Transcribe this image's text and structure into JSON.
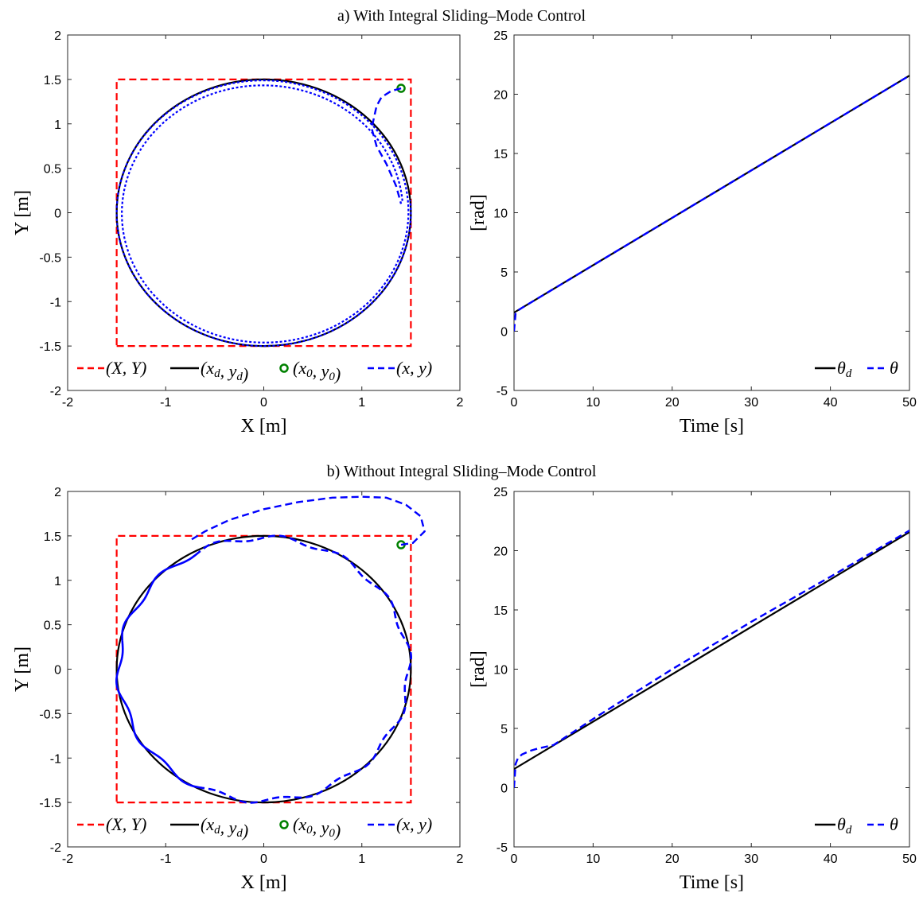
{
  "figure": {
    "titles": [
      "a) With Integral Sliding–Mode Control",
      "b) Without Integral Sliding–Mode Control"
    ]
  },
  "chart_data": [
    {
      "type": "line",
      "panel": "a-trajectory",
      "xlabel": "X [m]",
      "ylabel": "Y [m]",
      "xlim": [
        -2,
        2
      ],
      "ylim": [
        -2,
        2
      ],
      "xticks": [
        "-2",
        "-1",
        "0",
        "1",
        "2"
      ],
      "yticks": [
        "-2",
        "-1.5",
        "-1",
        "-0.5",
        "0",
        "0.5",
        "1",
        "1.5",
        "2"
      ],
      "grid": false,
      "legend": "bottom-center",
      "series": [
        {
          "name": "(X,Y)",
          "legend": "(X, Y)",
          "color": "#ff0000",
          "style": "dashed",
          "x": [
            -1.5,
            1.5,
            1.5,
            -1.5,
            -1.5
          ],
          "y": [
            -1.5,
            -1.5,
            1.5,
            1.5,
            -1.5
          ]
        },
        {
          "name": "(x_d,y_d)",
          "legend": "(xd, yd)",
          "color": "#000000",
          "style": "solid",
          "shape": "circle",
          "center": [
            0,
            0
          ],
          "radius": 1.5
        },
        {
          "name": "(x_0,y_0)",
          "legend": "(x0, y0)",
          "color": "#008000",
          "style": "marker",
          "x": [
            1.4
          ],
          "y": [
            1.4
          ]
        },
        {
          "name": "(x,y)",
          "legend": "(x, y)",
          "color": "#0000ff",
          "style": "dashed",
          "x": [
            1.4,
            1.3,
            1.2,
            1.15,
            1.1,
            1.15,
            1.25,
            1.35,
            1.4
          ],
          "y": [
            1.4,
            1.37,
            1.3,
            1.2,
            0.95,
            0.75,
            0.55,
            0.3,
            0.1
          ],
          "spiral": {
            "r_start": 1.42,
            "r_end": 1.5,
            "turns": 2
          }
        }
      ]
    },
    {
      "type": "line",
      "panel": "a-heading",
      "xlabel": "Time [s]",
      "ylabel": "[rad]",
      "xlim": [
        0,
        50
      ],
      "ylim": [
        -5,
        25
      ],
      "xticks": [
        "0",
        "10",
        "20",
        "30",
        "40",
        "50"
      ],
      "yticks": [
        "-5",
        "0",
        "5",
        "10",
        "15",
        "20",
        "25"
      ],
      "grid": false,
      "legend": "bottom-right",
      "series": [
        {
          "name": "theta_d",
          "legend": "θd",
          "color": "#000000",
          "style": "solid",
          "x": [
            0,
            50
          ],
          "y": [
            1.57,
            21.57
          ]
        },
        {
          "name": "theta",
          "legend": "θ",
          "color": "#0000ff",
          "style": "dashed",
          "x": [
            0,
            0.2,
            0.5,
            1,
            50
          ],
          "y": [
            0,
            1.5,
            1.75,
            1.97,
            21.57
          ]
        }
      ]
    },
    {
      "type": "line",
      "panel": "b-trajectory",
      "xlabel": "X [m]",
      "ylabel": "Y [m]",
      "xlim": [
        -2,
        2
      ],
      "ylim": [
        -2,
        2
      ],
      "xticks": [
        "-2",
        "-1",
        "0",
        "1",
        "2"
      ],
      "yticks": [
        "-2",
        "-1.5",
        "-1",
        "-0.5",
        "0",
        "0.5",
        "1",
        "1.5",
        "2"
      ],
      "grid": false,
      "legend": "bottom-center",
      "series": [
        {
          "name": "(X,Y)",
          "legend": "(X, Y)",
          "color": "#ff0000",
          "style": "dashed",
          "x": [
            -1.5,
            1.5,
            1.5,
            -1.5,
            -1.5
          ],
          "y": [
            -1.5,
            -1.5,
            1.5,
            1.5,
            -1.5
          ]
        },
        {
          "name": "(x_d,y_d)",
          "legend": "(xd, yd)",
          "color": "#000000",
          "style": "solid",
          "shape": "circle",
          "center": [
            0,
            0
          ],
          "radius": 1.5
        },
        {
          "name": "(x_0,y_0)",
          "legend": "(x0, y0)",
          "color": "#008000",
          "style": "marker",
          "x": [
            1.4
          ],
          "y": [
            1.4
          ]
        },
        {
          "name": "(x,y)",
          "legend": "(x, y)",
          "color": "#0000ff",
          "style": "dashed",
          "x": [
            1.4,
            1.52,
            1.64,
            1.6,
            1.45,
            1.25,
            1.0,
            0.7,
            0.35,
            0.0,
            -0.35,
            -0.6,
            -0.75
          ],
          "y": [
            1.4,
            1.42,
            1.55,
            1.72,
            1.85,
            1.93,
            1.94,
            1.93,
            1.88,
            1.8,
            1.68,
            1.55,
            1.45
          ],
          "oscillation": {
            "r_mean": 1.48,
            "amplitude": 0.03
          }
        }
      ]
    },
    {
      "type": "line",
      "panel": "b-heading",
      "xlabel": "Time [s]",
      "ylabel": "[rad]",
      "xlim": [
        0,
        50
      ],
      "ylim": [
        -5,
        25
      ],
      "xticks": [
        "0",
        "10",
        "20",
        "30",
        "40",
        "50"
      ],
      "yticks": [
        "-5",
        "0",
        "5",
        "10",
        "15",
        "20",
        "25"
      ],
      "grid": false,
      "legend": "bottom-right",
      "series": [
        {
          "name": "theta_d",
          "legend": "θd",
          "color": "#000000",
          "style": "solid",
          "x": [
            0,
            50
          ],
          "y": [
            1.57,
            21.57
          ]
        },
        {
          "name": "theta",
          "legend": "θ",
          "color": "#0000ff",
          "style": "dashed",
          "x": [
            0,
            0.2,
            0.5,
            1,
            2,
            3,
            5,
            10,
            20,
            30,
            40,
            50
          ],
          "y": [
            0,
            2.0,
            2.5,
            2.8,
            3.1,
            3.3,
            3.6,
            5.8,
            10.0,
            14.0,
            17.8,
            21.7
          ]
        }
      ]
    }
  ]
}
